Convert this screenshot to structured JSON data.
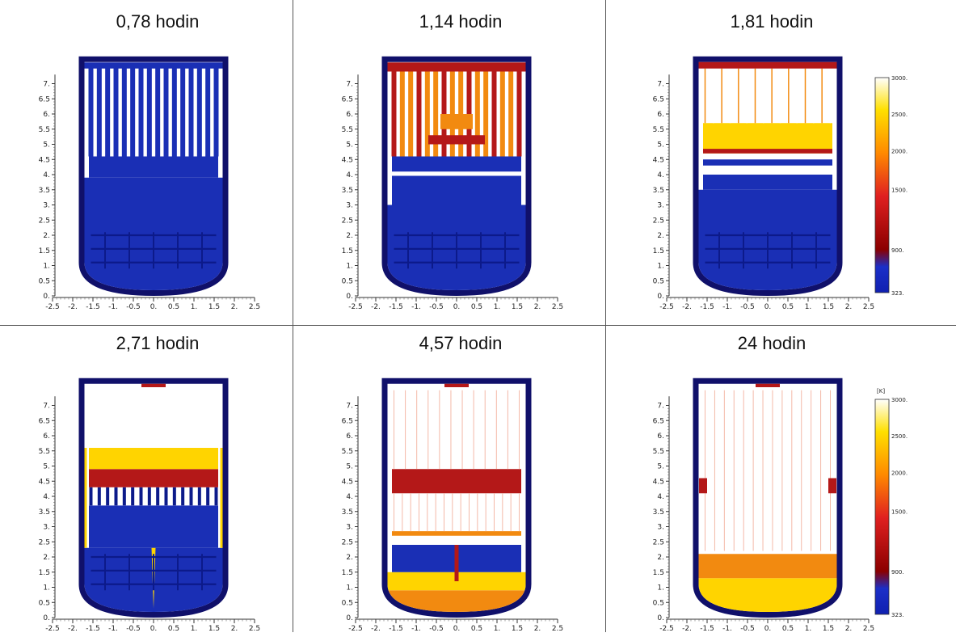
{
  "panels": [
    {
      "label": "0,78 hodin",
      "stage": 0,
      "colorbar": false
    },
    {
      "label": "1,14 hodin",
      "stage": 1,
      "colorbar": false
    },
    {
      "label": "1,81 hodin",
      "stage": 2,
      "colorbar": true
    },
    {
      "label": "2,71 hodin",
      "stage": 3,
      "colorbar": false
    },
    {
      "label": "4,57 hodin",
      "stage": 4,
      "colorbar": false
    },
    {
      "label": "24 hodin",
      "stage": 5,
      "colorbar": true
    }
  ],
  "axes": {
    "x_ticks": [
      "-2.5",
      "-2.",
      "-1.5",
      "-1.",
      "-0.5",
      "0.",
      "0.5",
      "1.",
      "1.5",
      "2.",
      "2.5"
    ],
    "y_ticks": [
      "0.",
      "0.5",
      "1.",
      "1.5",
      "2.",
      "2.5",
      "3.",
      "3.5",
      "4.",
      "4.5",
      "5.",
      "5.5",
      "6.",
      "6.5",
      "7."
    ]
  },
  "colorbar": {
    "unit": "[K]",
    "ticks": [
      "3000.",
      "2500.",
      "2000.",
      "1500.",
      "900.",
      "323."
    ]
  },
  "colors": {
    "vessel": "#10106a",
    "cold": "#1a2fb5",
    "cold_dark": "#0c1a8a",
    "hot_red": "#b41818",
    "hot_orange": "#f28a10",
    "hot_yellow": "#ffd400",
    "empty": "#ffffff"
  }
}
